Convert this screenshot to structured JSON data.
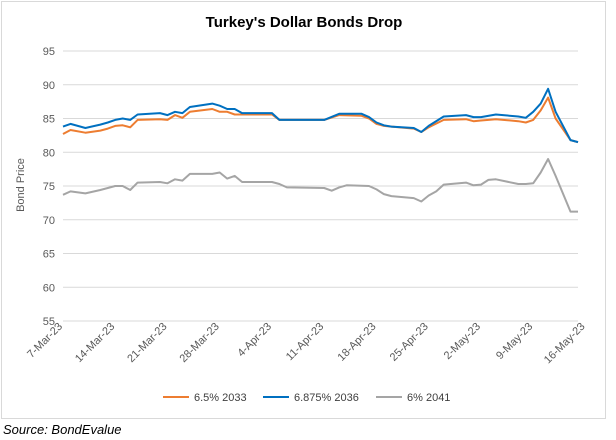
{
  "chart_data": {
    "type": "line",
    "title": "Turkey's Dollar Bonds Drop",
    "xlabel": "",
    "ylabel": "Bond Price",
    "ylim": [
      55,
      95
    ],
    "yticks": [
      55,
      60,
      65,
      70,
      75,
      80,
      85,
      90,
      95
    ],
    "x_tick_labels": [
      "7-Mar-23",
      "14-Mar-23",
      "21-Mar-23",
      "28-Mar-23",
      "4-Apr-23",
      "11-Apr-23",
      "18-Apr-23",
      "25-Apr-23",
      "2-May-23",
      "9-May-23",
      "16-May-23"
    ],
    "grid": true,
    "legend_position": "bottom",
    "series": [
      {
        "name": "6.5% 2033",
        "color": "#ED7D31",
        "points": [
          [
            0,
            82.7
          ],
          [
            1,
            83.3
          ],
          [
            3,
            82.9
          ],
          [
            5,
            83.2
          ],
          [
            6,
            83.5
          ],
          [
            7,
            83.9
          ],
          [
            8,
            84.0
          ],
          [
            9,
            83.7
          ],
          [
            10,
            84.8
          ],
          [
            13,
            84.9
          ],
          [
            14,
            84.8
          ],
          [
            15,
            85.5
          ],
          [
            16,
            85.1
          ],
          [
            17,
            86.0
          ],
          [
            20,
            86.4
          ],
          [
            21,
            86.0
          ],
          [
            22,
            86.0
          ],
          [
            23,
            85.6
          ],
          [
            28,
            85.6
          ],
          [
            29,
            84.8
          ],
          [
            35,
            84.8
          ],
          [
            37,
            85.5
          ],
          [
            40,
            85.4
          ],
          [
            41,
            85.0
          ],
          [
            42,
            84.2
          ],
          [
            43,
            83.9
          ],
          [
            44,
            83.8
          ],
          [
            47,
            83.5
          ],
          [
            48,
            83.0
          ],
          [
            49,
            83.7
          ],
          [
            51,
            84.8
          ],
          [
            54,
            84.9
          ],
          [
            55,
            84.6
          ],
          [
            56,
            84.7
          ],
          [
            58,
            84.9
          ],
          [
            61,
            84.6
          ],
          [
            62,
            84.4
          ],
          [
            63,
            84.8
          ],
          [
            64,
            86.2
          ],
          [
            65,
            88.1
          ],
          [
            66,
            85.0
          ],
          [
            68,
            81.8
          ],
          [
            69,
            81.5
          ]
        ]
      },
      {
        "name": "6.875% 2036",
        "color": "#0070C0",
        "points": [
          [
            0,
            83.8
          ],
          [
            1,
            84.2
          ],
          [
            3,
            83.6
          ],
          [
            5,
            84.1
          ],
          [
            6,
            84.4
          ],
          [
            7,
            84.8
          ],
          [
            8,
            85.0
          ],
          [
            9,
            84.8
          ],
          [
            10,
            85.6
          ],
          [
            13,
            85.8
          ],
          [
            14,
            85.5
          ],
          [
            15,
            86.0
          ],
          [
            16,
            85.8
          ],
          [
            17,
            86.7
          ],
          [
            20,
            87.2
          ],
          [
            21,
            86.9
          ],
          [
            22,
            86.4
          ],
          [
            23,
            86.4
          ],
          [
            24,
            85.8
          ],
          [
            28,
            85.8
          ],
          [
            29,
            84.8
          ],
          [
            35,
            84.8
          ],
          [
            37,
            85.7
          ],
          [
            40,
            85.7
          ],
          [
            41,
            85.2
          ],
          [
            42,
            84.4
          ],
          [
            43,
            84.0
          ],
          [
            44,
            83.8
          ],
          [
            47,
            83.6
          ],
          [
            48,
            83.0
          ],
          [
            49,
            83.9
          ],
          [
            51,
            85.3
          ],
          [
            54,
            85.5
          ],
          [
            55,
            85.2
          ],
          [
            56,
            85.2
          ],
          [
            58,
            85.6
          ],
          [
            61,
            85.3
          ],
          [
            62,
            85.1
          ],
          [
            63,
            86.0
          ],
          [
            64,
            87.2
          ],
          [
            65,
            89.4
          ],
          [
            66,
            86.0
          ],
          [
            68,
            81.8
          ],
          [
            69,
            81.5
          ]
        ]
      },
      {
        "name": "6% 2041",
        "color": "#A5A5A5",
        "points": [
          [
            0,
            73.7
          ],
          [
            1,
            74.2
          ],
          [
            3,
            73.9
          ],
          [
            5,
            74.4
          ],
          [
            6,
            74.7
          ],
          [
            7,
            75.0
          ],
          [
            8,
            75.0
          ],
          [
            9,
            74.4
          ],
          [
            10,
            75.5
          ],
          [
            13,
            75.6
          ],
          [
            14,
            75.4
          ],
          [
            15,
            76.0
          ],
          [
            16,
            75.8
          ],
          [
            17,
            76.8
          ],
          [
            20,
            76.8
          ],
          [
            21,
            77.0
          ],
          [
            22,
            76.1
          ],
          [
            23,
            76.5
          ],
          [
            24,
            75.6
          ],
          [
            28,
            75.6
          ],
          [
            29,
            75.3
          ],
          [
            30,
            74.8
          ],
          [
            35,
            74.7
          ],
          [
            36,
            74.3
          ],
          [
            37,
            74.8
          ],
          [
            38,
            75.1
          ],
          [
            41,
            75.0
          ],
          [
            42,
            74.5
          ],
          [
            43,
            73.8
          ],
          [
            44,
            73.5
          ],
          [
            47,
            73.2
          ],
          [
            48,
            72.7
          ],
          [
            49,
            73.6
          ],
          [
            50,
            74.2
          ],
          [
            51,
            75.2
          ],
          [
            54,
            75.5
          ],
          [
            55,
            75.1
          ],
          [
            56,
            75.2
          ],
          [
            57,
            75.9
          ],
          [
            58,
            76.0
          ],
          [
            61,
            75.3
          ],
          [
            62,
            75.3
          ],
          [
            63,
            75.4
          ],
          [
            64,
            77.0
          ],
          [
            65,
            79.0
          ],
          [
            66,
            76.5
          ],
          [
            68,
            71.2
          ],
          [
            69,
            71.2
          ]
        ]
      }
    ]
  },
  "source": "Source: BondEvalue"
}
